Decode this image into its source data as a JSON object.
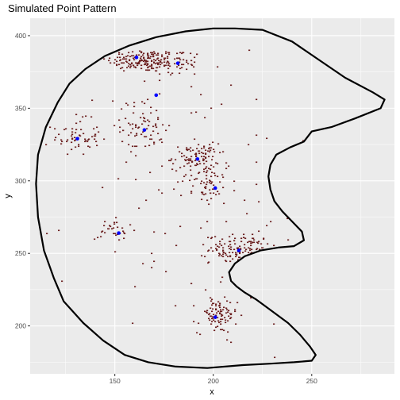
{
  "chart_data": {
    "type": "scatter",
    "title": "Simulated Point Pattern",
    "xlabel": "x",
    "ylabel": "y",
    "xlim": [
      107,
      292
    ],
    "ylim": [
      167,
      412
    ],
    "xticks": [
      150,
      200,
      250
    ],
    "yticks": [
      200,
      250,
      300,
      350,
      400
    ],
    "grid": true,
    "legend": "none",
    "colors": {
      "panel": "#ebebeb",
      "grid": "#ffffff",
      "boundary": "#000000",
      "points": "#6b1f1f",
      "centers": "#0000ff"
    },
    "centers": [
      {
        "x": 161,
        "y": 385
      },
      {
        "x": 182,
        "y": 381
      },
      {
        "x": 171,
        "y": 359
      },
      {
        "x": 131,
        "y": 329
      },
      {
        "x": 165,
        "y": 335
      },
      {
        "x": 192,
        "y": 315
      },
      {
        "x": 201,
        "y": 295
      },
      {
        "x": 152,
        "y": 264
      },
      {
        "x": 213,
        "y": 252
      },
      {
        "x": 201,
        "y": 206
      }
    ],
    "boundary": [
      [
        211,
        405
      ],
      [
        225,
        404
      ],
      [
        240,
        396
      ],
      [
        254,
        383
      ],
      [
        267,
        371
      ],
      [
        281,
        361
      ],
      [
        287,
        356
      ],
      [
        285,
        350
      ],
      [
        272,
        343
      ],
      [
        260,
        337
      ],
      [
        250,
        334
      ],
      [
        246,
        327
      ],
      [
        239,
        323
      ],
      [
        232,
        318
      ],
      [
        229,
        311
      ],
      [
        228,
        303
      ],
      [
        229,
        294
      ],
      [
        231,
        286
      ],
      [
        235,
        279
      ],
      [
        240,
        272
      ],
      [
        245,
        265
      ],
      [
        246,
        259
      ],
      [
        241,
        255
      ],
      [
        233,
        254
      ],
      [
        224,
        252
      ],
      [
        216,
        248
      ],
      [
        211,
        243
      ],
      [
        208,
        237
      ],
      [
        209,
        231
      ],
      [
        212,
        227
      ],
      [
        216,
        223
      ],
      [
        222,
        218
      ],
      [
        230,
        210
      ],
      [
        238,
        202
      ],
      [
        244,
        194
      ],
      [
        249,
        186
      ],
      [
        252,
        180
      ],
      [
        250,
        176
      ],
      [
        241,
        175
      ],
      [
        229,
        174
      ],
      [
        215,
        173
      ],
      [
        197,
        171
      ],
      [
        181,
        172
      ],
      [
        167,
        175
      ],
      [
        155,
        180
      ],
      [
        144,
        190
      ],
      [
        134,
        202
      ],
      [
        124,
        217
      ],
      [
        119,
        233
      ],
      [
        114,
        252
      ],
      [
        111,
        275
      ],
      [
        110,
        298
      ],
      [
        111,
        318
      ],
      [
        115,
        337
      ],
      [
        121,
        354
      ],
      [
        127,
        367
      ],
      [
        135,
        377
      ],
      [
        145,
        386
      ],
      [
        157,
        393
      ],
      [
        171,
        399
      ],
      [
        186,
        403
      ],
      [
        200,
        405
      ],
      [
        211,
        405
      ]
    ],
    "clusters": [
      {
        "cx": 164,
        "cy": 383,
        "sx": 9,
        "sy": 4,
        "n": 160
      },
      {
        "cx": 182,
        "cy": 381,
        "sx": 6,
        "sy": 5,
        "n": 55
      },
      {
        "cx": 130,
        "cy": 330,
        "sx": 6,
        "sy": 6,
        "n": 60
      },
      {
        "cx": 165,
        "cy": 338,
        "sx": 6,
        "sy": 9,
        "n": 70
      },
      {
        "cx": 191,
        "cy": 316,
        "sx": 6,
        "sy": 5,
        "n": 95
      },
      {
        "cx": 198,
        "cy": 297,
        "sx": 4,
        "sy": 6,
        "n": 50
      },
      {
        "cx": 150,
        "cy": 265,
        "sx": 5,
        "sy": 5,
        "n": 30
      },
      {
        "cx": 214,
        "cy": 253,
        "sx": 8,
        "sy": 5,
        "n": 120
      },
      {
        "cx": 202,
        "cy": 207,
        "sx": 5,
        "sy": 6,
        "n": 90
      },
      {
        "cx": 190,
        "cy": 290,
        "sx": 32,
        "sy": 55,
        "n": 110
      }
    ]
  }
}
